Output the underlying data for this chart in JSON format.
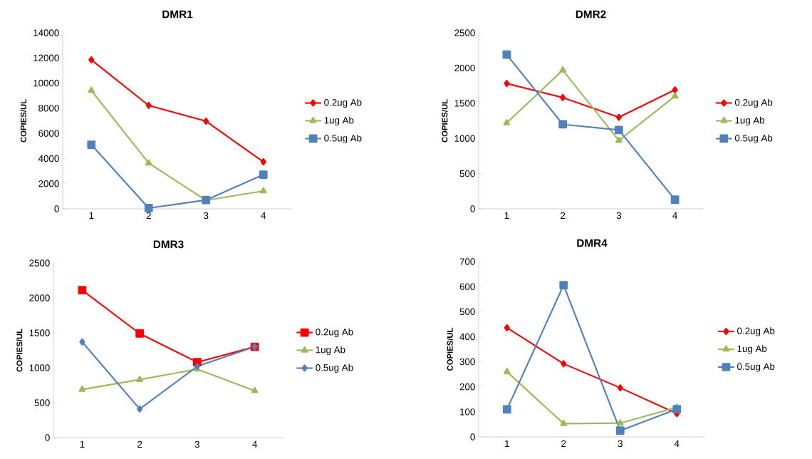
{
  "chart_data": [
    {
      "type": "line",
      "title": "DMR1",
      "ylabel": "COPIES/UL",
      "categories": [
        "1",
        "2",
        "3",
        "4"
      ],
      "ylim": [
        0,
        14000
      ],
      "yticks": [
        0,
        2000,
        4000,
        6000,
        8000,
        10000,
        12000,
        14000
      ],
      "legend": "right",
      "series": [
        {
          "name": "0.2ug Ab",
          "color": "#ff0000",
          "marker": "diamond",
          "values": [
            11850,
            8220,
            6970,
            3740
          ]
        },
        {
          "name": "1ug Ab",
          "color": "#9bbb59",
          "marker": "triangle",
          "values": [
            9410,
            3630,
            680,
            1420
          ]
        },
        {
          "name": "0.5ug Ab",
          "color": "#4f81bd",
          "marker": "square",
          "values": [
            5100,
            60,
            700,
            2720
          ]
        }
      ]
    },
    {
      "type": "line",
      "title": "DMR2",
      "ylabel": "COPIES/UL",
      "categories": [
        "1",
        "2",
        "3",
        "4"
      ],
      "ylim": [
        0,
        2500
      ],
      "yticks": [
        0,
        500,
        1000,
        1500,
        2000,
        2500
      ],
      "legend": "right",
      "series": [
        {
          "name": "0.2ug Ab",
          "color": "#ff0000",
          "marker": "diamond",
          "values": [
            1780,
            1580,
            1300,
            1690
          ]
        },
        {
          "name": "1ug Ab",
          "color": "#9bbb59",
          "marker": "triangle",
          "values": [
            1220,
            1970,
            970,
            1600
          ]
        },
        {
          "name": "0.5ug Ab",
          "color": "#4f81bd",
          "marker": "square",
          "values": [
            2190,
            1200,
            1120,
            130
          ]
        }
      ]
    },
    {
      "type": "line",
      "title": "DMR3",
      "ylabel": "COPIES/UL",
      "categories": [
        "1",
        "2",
        "3",
        "4"
      ],
      "ylim": [
        0,
        2500
      ],
      "yticks": [
        0,
        500,
        1000,
        1500,
        2000,
        2500
      ],
      "legend": "right",
      "series": [
        {
          "name": "0.2ug Ab",
          "color": "#ff0000",
          "marker": "square",
          "values": [
            2110,
            1490,
            1080,
            1300
          ]
        },
        {
          "name": "1ug Ab",
          "color": "#9bbb59",
          "marker": "triangle",
          "values": [
            690,
            830,
            980,
            670
          ]
        },
        {
          "name": "0.5ug Ab",
          "color": "#4f81bd",
          "marker": "diamond",
          "values": [
            1370,
            410,
            1020,
            1300
          ]
        }
      ]
    },
    {
      "type": "line",
      "title": "DMR4",
      "ylabel": "COPIES/UL",
      "categories": [
        "1",
        "2",
        "3",
        "4"
      ],
      "ylim": [
        0,
        700
      ],
      "yticks": [
        0,
        100,
        200,
        300,
        400,
        500,
        600,
        700
      ],
      "legend": "right",
      "series": [
        {
          "name": "0.2ug Ab",
          "color": "#ff0000",
          "marker": "diamond",
          "values": [
            436,
            292,
            196,
            93
          ]
        },
        {
          "name": "1ug Ab",
          "color": "#9bbb59",
          "marker": "triangle",
          "values": [
            260,
            53,
            55,
            118
          ]
        },
        {
          "name": "0.5ug Ab",
          "color": "#4f81bd",
          "marker": "square",
          "values": [
            110,
            606,
            25,
            111
          ]
        }
      ]
    }
  ]
}
